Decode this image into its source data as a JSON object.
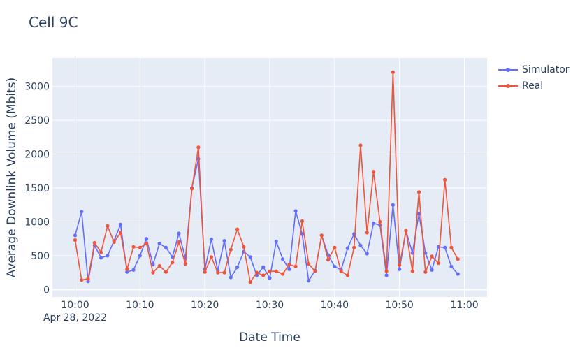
{
  "chart_data": {
    "type": "line",
    "title": "Cell 9C",
    "xlabel": "Date Time",
    "ylabel": "Average Downlink Volume (Mbits)",
    "x_start": "2022-04-28 10:00",
    "x_step_minutes": 1,
    "xlim_minutes": [
      -3.5,
      63.5
    ],
    "ylim": [
      -110,
      3420
    ],
    "x_ticks": [
      {
        "minute": 0,
        "label": "10:00",
        "sublabel": "Apr 28, 2022"
      },
      {
        "minute": 10,
        "label": "10:10"
      },
      {
        "minute": 20,
        "label": "10:20"
      },
      {
        "minute": 30,
        "label": "10:30"
      },
      {
        "minute": 40,
        "label": "10:40"
      },
      {
        "minute": 50,
        "label": "10:50"
      },
      {
        "minute": 60,
        "label": "11:00"
      }
    ],
    "y_ticks": [
      0,
      500,
      1000,
      1500,
      2000,
      2500,
      3000
    ],
    "y_tick_labels": [
      "0",
      "500",
      "1000",
      "1500",
      "2000",
      "2500",
      "3000"
    ],
    "grid": true,
    "legend_position": "top-right outside",
    "series": [
      {
        "name": "Simulator",
        "color": "#636efa",
        "values": [
          800,
          1150,
          120,
          650,
          470,
          500,
          720,
          960,
          260,
          290,
          500,
          750,
          370,
          680,
          620,
          480,
          830,
          460,
          1500,
          1930,
          300,
          740,
          280,
          720,
          180,
          330,
          560,
          480,
          210,
          330,
          170,
          710,
          450,
          300,
          1160,
          820,
          130,
          280,
          800,
          510,
          340,
          290,
          610,
          820,
          650,
          530,
          980,
          950,
          210,
          1250,
          300,
          870,
          540,
          1120,
          540,
          290,
          630,
          620,
          340,
          230
        ]
      },
      {
        "name": "Real",
        "color": "#ef553b",
        "values": [
          730,
          140,
          160,
          690,
          550,
          940,
          700,
          840,
          300,
          630,
          620,
          680,
          250,
          350,
          260,
          400,
          700,
          380,
          1490,
          2100,
          260,
          480,
          250,
          250,
          590,
          890,
          630,
          110,
          250,
          210,
          270,
          270,
          230,
          370,
          340,
          1010,
          380,
          270,
          800,
          440,
          620,
          270,
          210,
          620,
          2130,
          840,
          1740,
          1000,
          270,
          3210,
          360,
          870,
          270,
          1440,
          260,
          490,
          390,
          1620,
          620,
          450
        ]
      }
    ]
  }
}
